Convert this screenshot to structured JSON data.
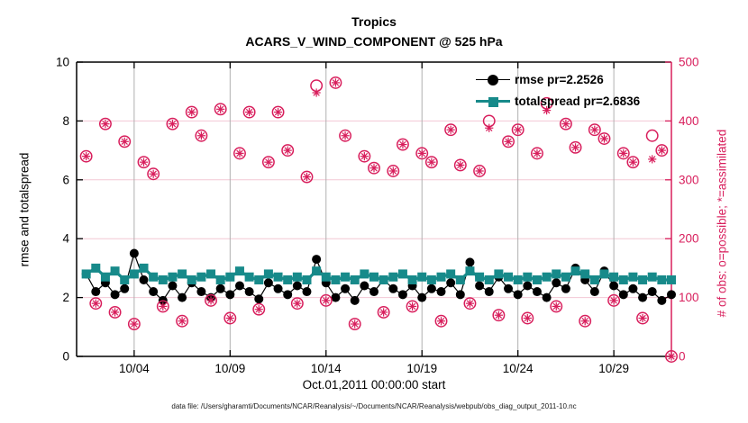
{
  "colors": {
    "accent_pink": "#d81e5c",
    "grid_pink": "#f3c7d4",
    "grid_gray": "#b0b0b0",
    "teal": "#178a8a",
    "black": "#000000",
    "background": "#ffffff"
  },
  "footer": {
    "datafile": "data file: /Users/gharamti/Documents/NCAR/Reanalysis/~/Documents/NCAR/Reanalysis/webpub/obs_diag_output_2011-10.nc"
  },
  "chart_data": {
    "type": "line",
    "title": "Tropics",
    "subtitle": "ACARS_V_WIND_COMPONENT @ 525 hPa",
    "xlabel": "Oct.01,2011 00:00:00 start",
    "ylabel_left": "rmse and totalspread",
    "ylabel_right": "# of obs: o=possible; *=assimilated",
    "ylim_left": [
      0,
      10
    ],
    "ylim_right": [
      0,
      500
    ],
    "yticks_left": [
      0,
      2,
      4,
      6,
      8,
      10
    ],
    "yticks_right": [
      0,
      100,
      200,
      300,
      400,
      500
    ],
    "grid": {
      "vertical": true,
      "horizontal": true,
      "legend_box": false
    },
    "xlim_days": [
      0,
      31
    ],
    "xticks": [
      {
        "day": 3,
        "label": "10/04"
      },
      {
        "day": 8,
        "label": "10/09"
      },
      {
        "day": 13,
        "label": "10/14"
      },
      {
        "day": 18,
        "label": "10/19"
      },
      {
        "day": 23,
        "label": "10/24"
      },
      {
        "day": 28,
        "label": "10/29"
      }
    ],
    "x_days": [
      0.5,
      1,
      1.5,
      2,
      2.5,
      3,
      3.5,
      4,
      4.5,
      5,
      5.5,
      6,
      6.5,
      7,
      7.5,
      8,
      8.5,
      9,
      9.5,
      10,
      10.5,
      11,
      11.5,
      12,
      12.5,
      13,
      13.5,
      14,
      14.5,
      15,
      15.5,
      16,
      16.5,
      17,
      17.5,
      18,
      18.5,
      19,
      19.5,
      20,
      20.5,
      21,
      21.5,
      22,
      22.5,
      23,
      23.5,
      24,
      24.5,
      25,
      25.5,
      26,
      26.5,
      27,
      27.5,
      28,
      28.5,
      29,
      29.5,
      30,
      30.5,
      31
    ],
    "series": [
      {
        "name": "rmse",
        "legend_label": "rmse pr=2.2526",
        "axis": "left",
        "marker": "filled-circle",
        "color": "#000000",
        "values": [
          2.8,
          2.2,
          2.5,
          2.1,
          2.3,
          3.5,
          2.6,
          2.2,
          1.9,
          2.4,
          2.0,
          2.5,
          2.2,
          2.0,
          2.3,
          2.1,
          2.4,
          2.2,
          1.95,
          2.5,
          2.3,
          2.1,
          2.4,
          2.2,
          3.3,
          2.5,
          2.0,
          2.3,
          1.9,
          2.4,
          2.2,
          2.6,
          2.3,
          2.1,
          2.4,
          2.0,
          2.3,
          2.2,
          2.5,
          2.1,
          3.2,
          2.4,
          2.2,
          2.7,
          2.3,
          2.1,
          2.4,
          2.2,
          2.0,
          2.5,
          2.3,
          3.0,
          2.6,
          2.2,
          2.9,
          2.4,
          2.1,
          2.3,
          2.0,
          2.2,
          1.9,
          2.1
        ]
      },
      {
        "name": "totalspread",
        "legend_label": "totalspread pr=2.6836",
        "axis": "left",
        "marker": "filled-square",
        "color": "#178a8a",
        "values": [
          2.8,
          3.0,
          2.7,
          2.9,
          2.6,
          2.8,
          3.0,
          2.7,
          2.6,
          2.7,
          2.8,
          2.6,
          2.7,
          2.8,
          2.6,
          2.7,
          2.9,
          2.7,
          2.6,
          2.8,
          2.7,
          2.6,
          2.7,
          2.6,
          2.9,
          2.7,
          2.6,
          2.7,
          2.6,
          2.8,
          2.7,
          2.6,
          2.7,
          2.8,
          2.6,
          2.7,
          2.6,
          2.7,
          2.8,
          2.6,
          2.9,
          2.7,
          2.6,
          2.8,
          2.7,
          2.6,
          2.7,
          2.6,
          2.7,
          2.8,
          2.7,
          2.9,
          2.8,
          2.6,
          2.8,
          2.7,
          2.6,
          2.7,
          2.6,
          2.7,
          2.6,
          2.6
        ]
      },
      {
        "name": "obs-possible",
        "legend_label": null,
        "axis": "right",
        "marker": "open-circle",
        "color": "#d81e5c",
        "values": [
          340,
          90,
          395,
          75,
          365,
          55,
          330,
          310,
          85,
          395,
          60,
          415,
          375,
          95,
          420,
          65,
          345,
          415,
          80,
          330,
          415,
          350,
          90,
          305,
          460,
          95,
          465,
          375,
          55,
          340,
          320,
          75,
          315,
          360,
          85,
          345,
          330,
          60,
          385,
          325,
          90,
          315,
          400,
          70,
          365,
          385,
          65,
          345,
          430,
          85,
          395,
          355,
          60,
          385,
          370,
          95,
          345,
          330,
          65,
          375,
          350,
          0
        ]
      },
      {
        "name": "obs-assimilated",
        "legend_label": null,
        "axis": "right",
        "marker": "asterisk",
        "color": "#d81e5c",
        "values": [
          340,
          90,
          395,
          75,
          365,
          55,
          330,
          310,
          85,
          395,
          60,
          415,
          375,
          95,
          420,
          65,
          345,
          415,
          80,
          330,
          415,
          350,
          90,
          305,
          448,
          95,
          465,
          375,
          55,
          340,
          320,
          75,
          315,
          360,
          85,
          345,
          330,
          60,
          385,
          325,
          90,
          315,
          388,
          70,
          365,
          385,
          65,
          345,
          418,
          85,
          395,
          355,
          60,
          385,
          370,
          95,
          345,
          330,
          65,
          335,
          350,
          0
        ]
      }
    ],
    "legend": [
      {
        "label": "rmse pr=2.2526",
        "marker": "circle",
        "color": "#000000"
      },
      {
        "label": "totalspread pr=2.6836",
        "marker": "square",
        "color": "#178a8a"
      }
    ]
  }
}
